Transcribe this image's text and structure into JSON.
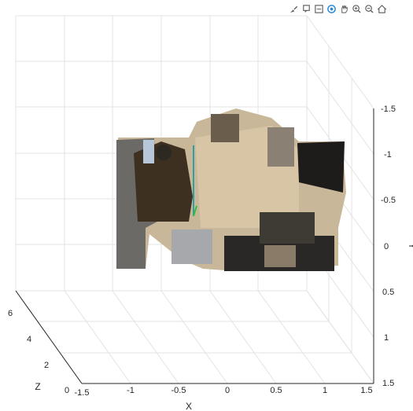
{
  "toolbar": {
    "buttons": [
      {
        "icon": "brush-icon"
      },
      {
        "icon": "datatip-icon"
      },
      {
        "icon": "data-cursor-icon"
      },
      {
        "icon": "rotate-3d-icon"
      },
      {
        "icon": "pan-icon"
      },
      {
        "icon": "zoom-in-icon"
      },
      {
        "icon": "zoom-out-icon"
      },
      {
        "icon": "home-icon"
      }
    ]
  },
  "axes": {
    "x": {
      "label": "X",
      "ticks": [
        "-1.5",
        "-1",
        "-0.5",
        "0",
        "0.5",
        "1",
        "1.5"
      ]
    },
    "y": {
      "label": "Y",
      "ticks": [
        "-1.5",
        "-1",
        "-0.5",
        "0",
        "0.5",
        "1",
        "1.5"
      ]
    },
    "z": {
      "label": "Z",
      "ticks": [
        "0",
        "2",
        "4",
        "6"
      ]
    }
  },
  "colors": {
    "grid": "#e3e3e3",
    "axis": "#262626",
    "wall": "#c9b79a",
    "toolbar_icon": "#5a5a5a",
    "rotate_active": "#2a8ad8"
  }
}
